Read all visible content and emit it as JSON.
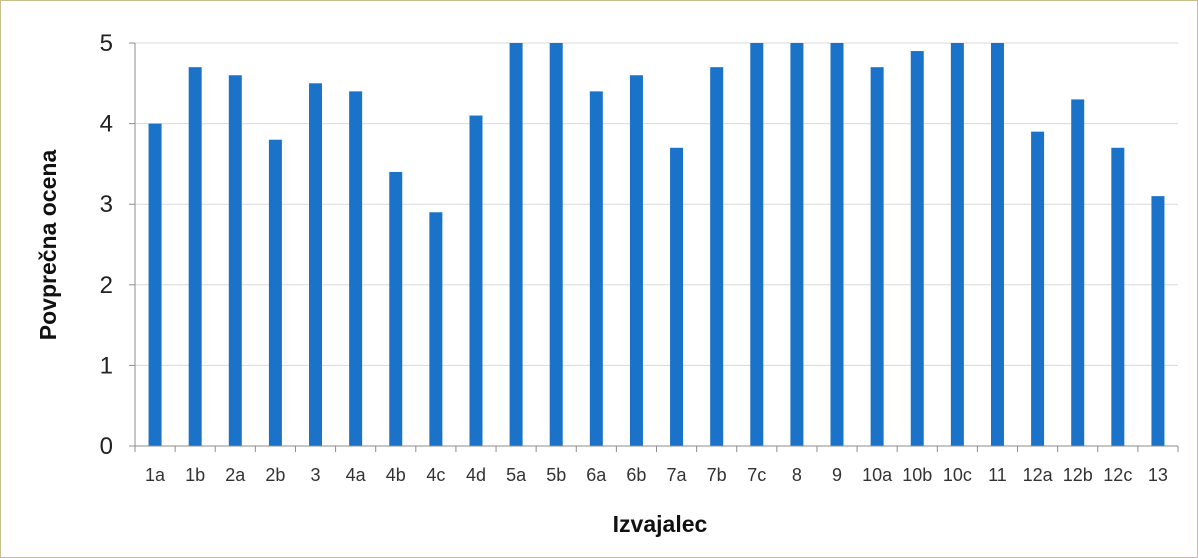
{
  "chart_data": {
    "type": "bar",
    "title": "",
    "xlabel": "Izvajalec",
    "ylabel": "Povprečna ocena",
    "ylim": [
      0,
      5
    ],
    "yticks": [
      "0",
      "1",
      "2",
      "3",
      "4",
      "5"
    ],
    "grid": true,
    "legend": "none",
    "bar_color": "#1a73c8",
    "categories": [
      "1a",
      "1b",
      "2a",
      "2b",
      "3",
      "4a",
      "4b",
      "4c",
      "4d",
      "5a",
      "5b",
      "6a",
      "6b",
      "7a",
      "7b",
      "7c",
      "8",
      "9",
      "10a",
      "10b",
      "10c",
      "11",
      "12a",
      "12b",
      "12c",
      "13"
    ],
    "values": [
      4.0,
      4.7,
      4.6,
      3.8,
      4.5,
      4.4,
      3.4,
      2.9,
      4.1,
      5.0,
      5.0,
      4.4,
      4.6,
      3.7,
      4.7,
      5.0,
      5.0,
      5.0,
      4.7,
      4.9,
      5.0,
      5.0,
      3.9,
      4.3,
      3.7,
      3.1
    ]
  }
}
